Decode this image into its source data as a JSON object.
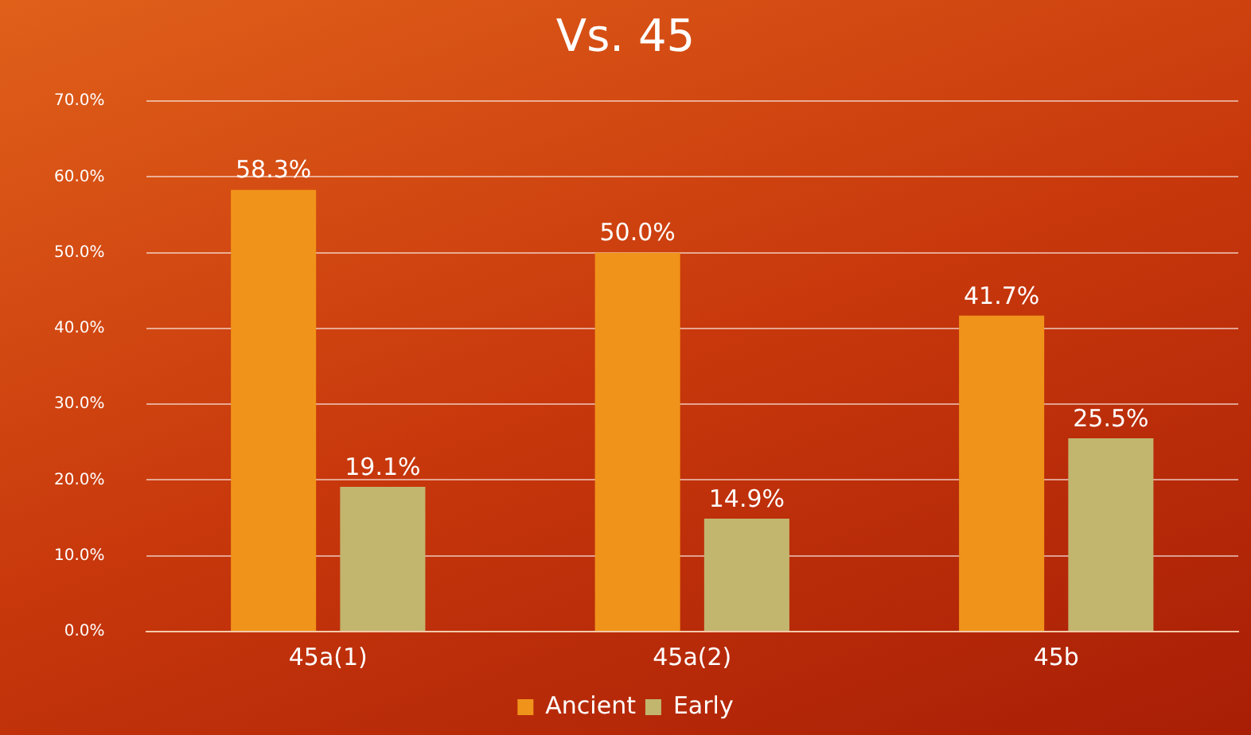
{
  "chart_data": {
    "type": "bar",
    "title": "Vs. 45",
    "categories": [
      "45a(1)",
      "45a(2)",
      "45b"
    ],
    "series": [
      {
        "name": "Ancient",
        "color": "#f0931a",
        "values": [
          58.3,
          50.0,
          41.7
        ],
        "value_labels": [
          "58.3%",
          "50.0%",
          "41.7%"
        ]
      },
      {
        "name": "Early",
        "color": "#c2b66f",
        "values": [
          19.1,
          14.9,
          25.5
        ],
        "value_labels": [
          "19.1%",
          "14.9%",
          "25.5%"
        ]
      }
    ],
    "ylim": [
      0,
      70
    ],
    "yticks": [
      {
        "value": 0,
        "label": "0.0%"
      },
      {
        "value": 10,
        "label": "10.0%"
      },
      {
        "value": 20,
        "label": "20.0%"
      },
      {
        "value": 30,
        "label": "30.0%"
      },
      {
        "value": 40,
        "label": "40.0%"
      },
      {
        "value": 50,
        "label": "50.0%"
      },
      {
        "value": 60,
        "label": "60.0%"
      },
      {
        "value": 70,
        "label": "70.0%"
      }
    ],
    "grid": "y",
    "legend": "bottom"
  }
}
